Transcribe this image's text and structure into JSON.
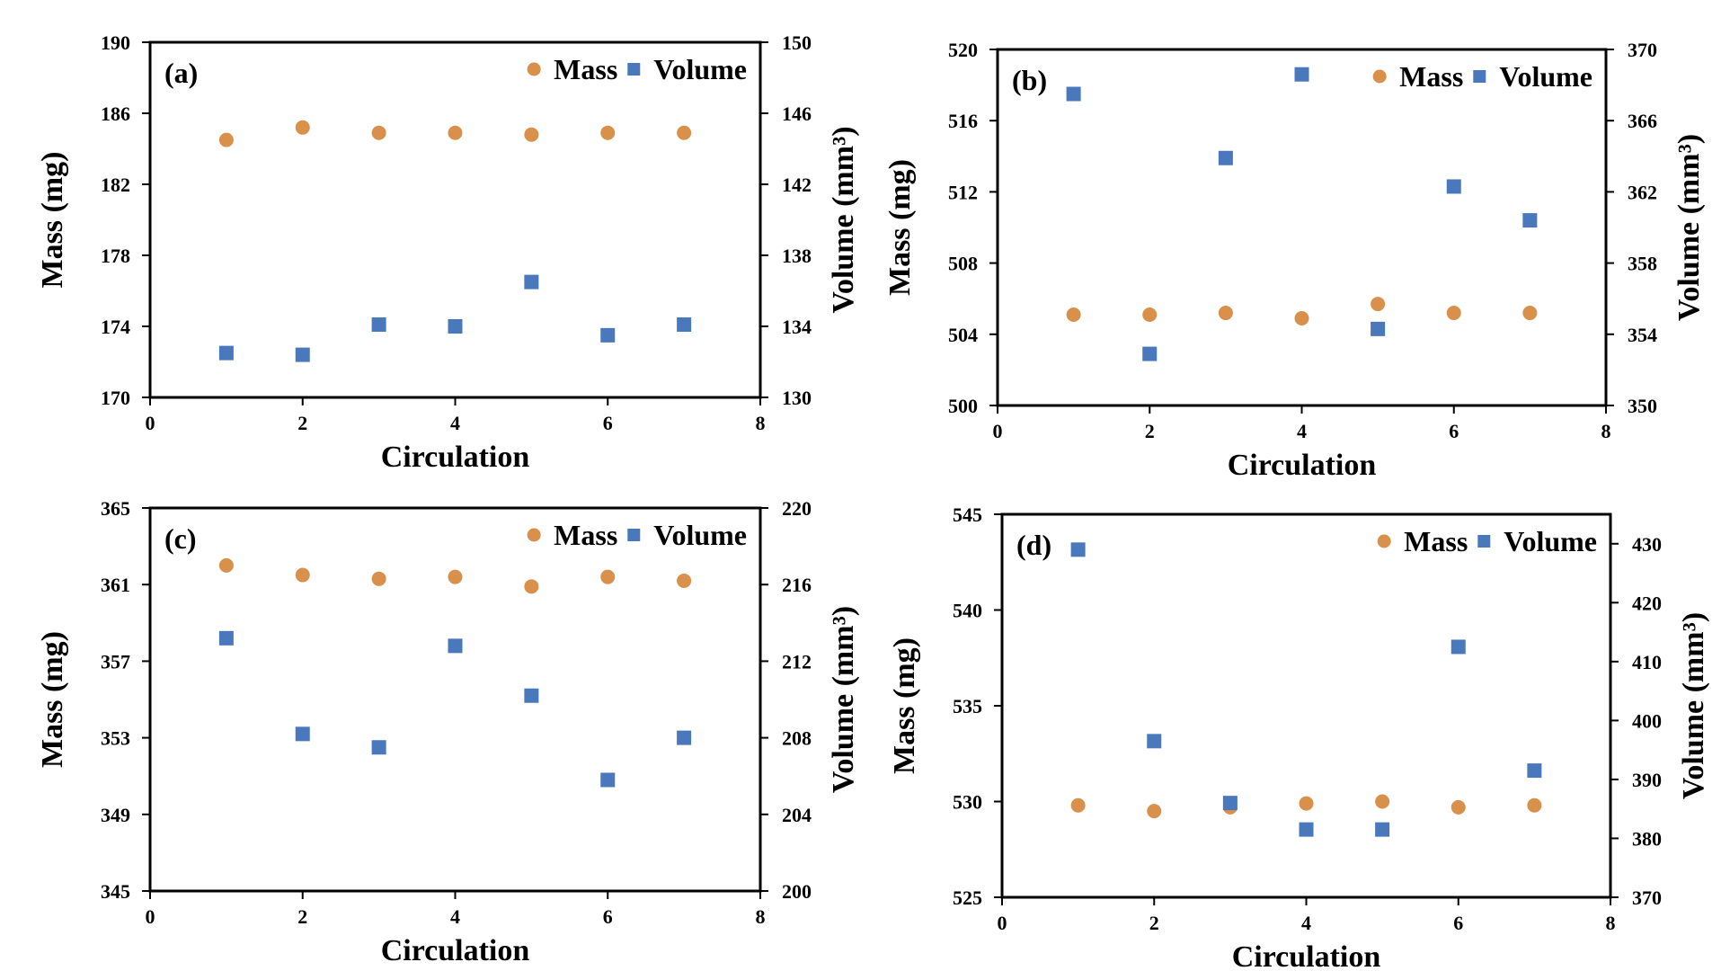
{
  "colors": {
    "mass": "#D8904A",
    "volume": "#4A78BD",
    "axis": "#000000"
  },
  "chart_data": [
    {
      "type": "scatter",
      "panel_label": "(a)",
      "xlabel": "Circulation",
      "ylabel": "Mass (mg)",
      "y2label": "Volume (mm³)",
      "xlim": [
        0,
        8
      ],
      "x_ticks": [
        0,
        2,
        4,
        6,
        8
      ],
      "ylim": [
        170,
        190
      ],
      "y_ticks": [
        170,
        174,
        178,
        182,
        186,
        190
      ],
      "y2lim": [
        130,
        150
      ],
      "y2_ticks": [
        130,
        134,
        138,
        142,
        146,
        150
      ],
      "legend": [
        "Mass",
        "Volume"
      ],
      "legend_position": "top-right",
      "series": [
        {
          "name": "Mass",
          "axis": "left",
          "marker": "circle",
          "x": [
            1,
            2,
            3,
            4,
            5,
            6,
            7
          ],
          "y": [
            184.5,
            185.2,
            184.9,
            184.9,
            184.8,
            184.9,
            184.9
          ]
        },
        {
          "name": "Volume",
          "axis": "right",
          "marker": "square",
          "x": [
            1,
            2,
            3,
            4,
            5,
            6,
            7
          ],
          "y": [
            132.5,
            132.4,
            134.1,
            134.0,
            136.5,
            133.5,
            134.1
          ]
        }
      ]
    },
    {
      "type": "scatter",
      "panel_label": "(b)",
      "xlabel": "Circulation",
      "ylabel": "Mass (mg)",
      "y2label": "Volume (mm³)",
      "xlim": [
        0,
        8
      ],
      "x_ticks": [
        0,
        2,
        4,
        6,
        8
      ],
      "ylim": [
        500,
        520
      ],
      "y_ticks": [
        500,
        504,
        508,
        512,
        516,
        520
      ],
      "y2lim": [
        350,
        370
      ],
      "y2_ticks": [
        350,
        354,
        358,
        362,
        366,
        370
      ],
      "legend": [
        "Mass",
        "Volume"
      ],
      "legend_position": "top-right",
      "series": [
        {
          "name": "Mass",
          "axis": "left",
          "marker": "circle",
          "x": [
            1,
            2,
            3,
            4,
            5,
            6,
            7
          ],
          "y": [
            505.1,
            505.1,
            505.2,
            504.9,
            505.7,
            505.2,
            505.2
          ]
        },
        {
          "name": "Volume",
          "axis": "right",
          "marker": "square",
          "x": [
            1,
            2,
            3,
            4,
            5,
            6,
            7
          ],
          "y": [
            367.5,
            352.9,
            363.9,
            368.6,
            354.3,
            362.3,
            360.4
          ]
        }
      ]
    },
    {
      "type": "scatter",
      "panel_label": "(c)",
      "xlabel": "Circulation",
      "ylabel": "Mass (mg)",
      "y2label": "Volume (mm³)",
      "xlim": [
        0,
        8
      ],
      "x_ticks": [
        0,
        2,
        4,
        6,
        8
      ],
      "ylim": [
        345,
        365
      ],
      "y_ticks": [
        345,
        349,
        353,
        357,
        361,
        365
      ],
      "y2lim": [
        200,
        220
      ],
      "y2_ticks": [
        200,
        204,
        208,
        212,
        216,
        220
      ],
      "legend": [
        "Mass",
        "Volume"
      ],
      "legend_position": "top-right",
      "series": [
        {
          "name": "Mass",
          "axis": "left",
          "marker": "circle",
          "x": [
            1,
            2,
            3,
            4,
            5,
            6,
            7
          ],
          "y": [
            362.0,
            361.5,
            361.3,
            361.4,
            360.9,
            361.4,
            361.2
          ]
        },
        {
          "name": "Volume",
          "axis": "right",
          "marker": "square",
          "x": [
            1,
            2,
            3,
            4,
            5,
            6,
            7
          ],
          "y": [
            213.2,
            208.2,
            207.5,
            212.8,
            210.2,
            205.8,
            208.0
          ]
        }
      ]
    },
    {
      "type": "scatter",
      "panel_label": "(d)",
      "xlabel": "Circulation",
      "ylabel": "Mass (mg)",
      "y2label": "Volume (mm³)",
      "xlim": [
        0,
        8
      ],
      "x_ticks": [
        0,
        2,
        4,
        6,
        8
      ],
      "ylim": [
        525,
        545
      ],
      "y_ticks": [
        525,
        530,
        535,
        540,
        545
      ],
      "y2lim": [
        370,
        435
      ],
      "y2_ticks": [
        370,
        380,
        390,
        400,
        410,
        420,
        430
      ],
      "legend": [
        "Mass",
        "Volume"
      ],
      "legend_position": "top-right",
      "series": [
        {
          "name": "Mass",
          "axis": "left",
          "marker": "circle",
          "x": [
            1,
            2,
            3,
            4,
            5,
            6,
            7
          ],
          "y": [
            529.8,
            529.5,
            529.7,
            529.9,
            530.0,
            529.7,
            529.8
          ]
        },
        {
          "name": "Volume",
          "axis": "right",
          "marker": "square",
          "x": [
            1,
            2,
            3,
            4,
            5,
            6,
            7
          ],
          "y": [
            429.0,
            396.5,
            386.0,
            381.5,
            381.5,
            412.5,
            391.5
          ]
        }
      ]
    }
  ]
}
